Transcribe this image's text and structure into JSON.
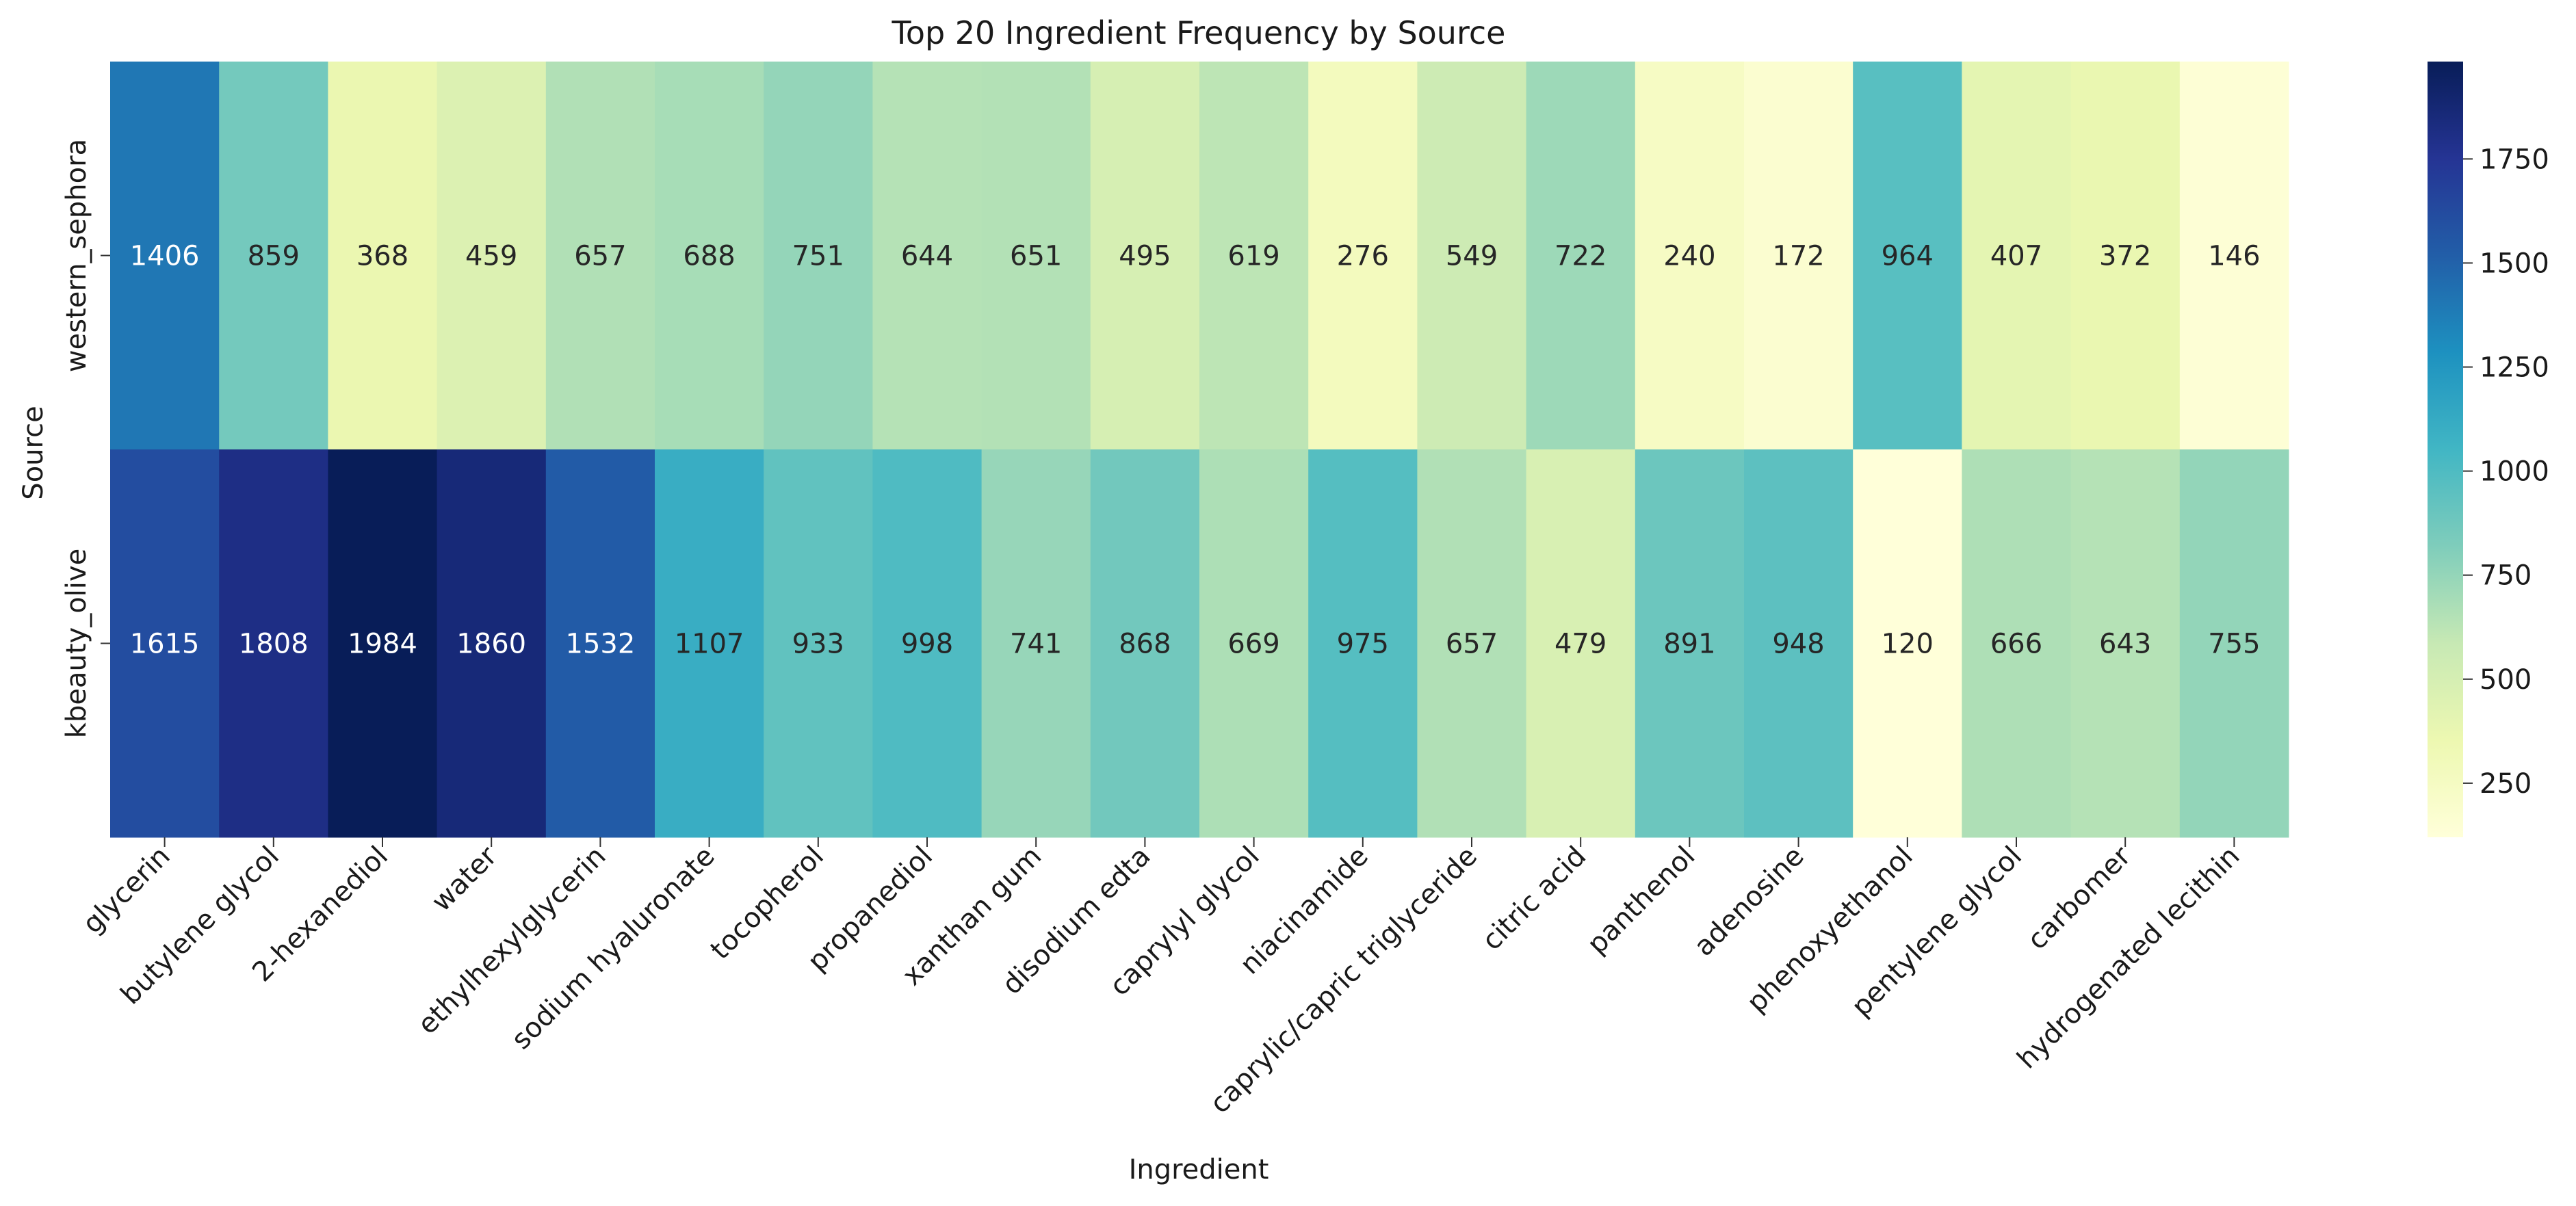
{
  "chart_data": {
    "type": "heatmap",
    "title": "Top 20 Ingredient Frequency by Source",
    "xlabel": "Ingredient",
    "ylabel": "Source",
    "x_categories": [
      "glycerin",
      "butylene glycol",
      "2-hexanediol",
      "water",
      "ethylhexylglycerin",
      "sodium hyaluronate",
      "tocopherol",
      "propanediol",
      "xanthan gum",
      "disodium edta",
      "caprylyl glycol",
      "niacinamide",
      "caprylic/capric triglyceride",
      "citric acid",
      "panthenol",
      "adenosine",
      "phenoxyethanol",
      "pentylene glycol",
      "carbomer",
      "hydrogenated lecithin"
    ],
    "y_categories": [
      "western_sephora",
      "kbeauty_olive"
    ],
    "values": [
      [
        1406,
        859,
        368,
        459,
        657,
        688,
        751,
        644,
        651,
        495,
        619,
        276,
        549,
        722,
        240,
        172,
        964,
        407,
        372,
        146
      ],
      [
        1615,
        1808,
        1984,
        1860,
        1532,
        1107,
        933,
        998,
        741,
        868,
        669,
        975,
        657,
        479,
        891,
        948,
        120,
        666,
        643,
        755
      ]
    ],
    "colormap": "YlGnBu",
    "colorbar": {
      "vmin": 120,
      "vmax": 1984,
      "ticks": [
        250,
        500,
        750,
        1000,
        1250,
        1500,
        1750
      ]
    },
    "annotations": true
  }
}
